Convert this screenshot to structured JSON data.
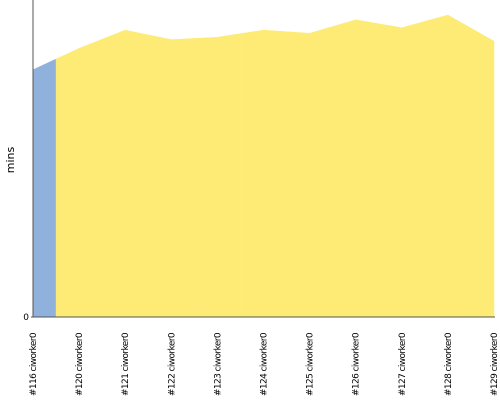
{
  "chart_data": {
    "type": "area",
    "y_label": "mins",
    "categories": [
      "#116 ciworker0",
      "#120 ciworker0",
      "#121 ciworker0",
      "#122 ciworker0",
      "#123 ciworker0",
      "#124 ciworker0",
      "#125 ciworker0",
      "#126 ciworker0",
      "#127 ciworker0",
      "#128 ciworker0",
      "#129 ciworker0"
    ],
    "values": [
      31.2,
      33.9,
      36.2,
      35.0,
      35.3,
      36.2,
      35.8,
      37.5,
      36.5,
      38.1,
      34.8
    ],
    "colors": [
      "#8fb1dc",
      "#fdeb76",
      "#fdeb76",
      "#fdeb76",
      "#fdeb76",
      "#fdeb76",
      "#fdeb76",
      "#fdeb76",
      "#fdeb76",
      "#fdeb76",
      "#fdeb76"
    ],
    "ylim": [
      0,
      40
    ],
    "yticks": [
      0
    ]
  }
}
